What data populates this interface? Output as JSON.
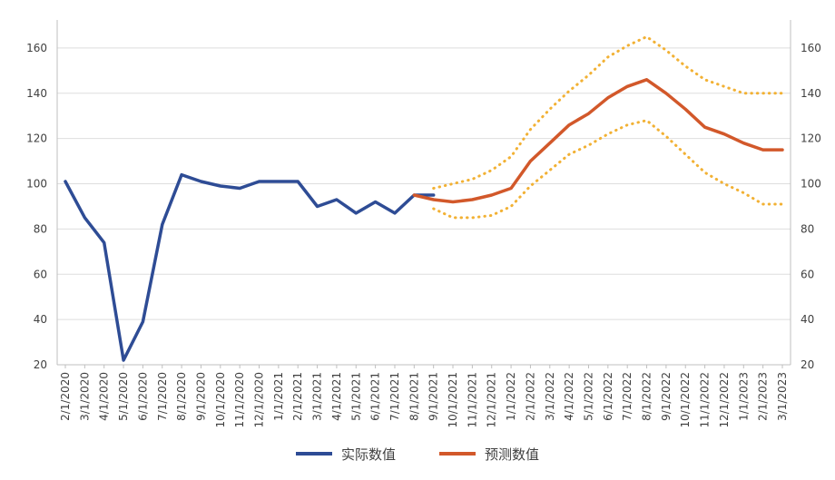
{
  "chart_data": {
    "type": "line",
    "categories": [
      "2/1/2020",
      "3/1/2020",
      "4/1/2020",
      "5/1/2020",
      "6/1/2020",
      "7/1/2020",
      "8/1/2020",
      "9/1/2020",
      "10/1/2020",
      "11/1/2020",
      "12/1/2020",
      "1/1/2021",
      "2/1/2021",
      "3/1/2021",
      "4/1/2021",
      "5/1/2021",
      "6/1/2021",
      "7/1/2021",
      "8/1/2021",
      "9/1/2021",
      "10/1/2021",
      "11/1/2021",
      "12/1/2021",
      "1/1/2022",
      "2/1/2022",
      "3/1/2022",
      "4/1/2022",
      "5/1/2022",
      "6/1/2022",
      "7/1/2022",
      "8/1/2022",
      "9/1/2022",
      "10/1/2022",
      "11/1/2022",
      "12/1/2022",
      "1/1/2023",
      "2/1/2023",
      "3/1/2023"
    ],
    "ylim": [
      20,
      170
    ],
    "yticks": [
      20,
      40,
      60,
      80,
      100,
      120,
      140,
      160
    ],
    "series": [
      {
        "name": "实际数值",
        "color": "#2e4c95",
        "style": "solid",
        "values": [
          101,
          85,
          74,
          22,
          39,
          82,
          104,
          101,
          99,
          98,
          101,
          101,
          101,
          90,
          93,
          87,
          92,
          87,
          95,
          95,
          null,
          null,
          null,
          null,
          null,
          null,
          null,
          null,
          null,
          null,
          null,
          null,
          null,
          null,
          null,
          null,
          null,
          null
        ]
      },
      {
        "name": "预测数值",
        "color": "#d2582a",
        "style": "solid",
        "values": [
          null,
          null,
          null,
          null,
          null,
          null,
          null,
          null,
          null,
          null,
          null,
          null,
          null,
          null,
          null,
          null,
          null,
          null,
          95,
          93,
          92,
          93,
          95,
          98,
          110,
          118,
          126,
          131,
          138,
          143,
          146,
          140,
          133,
          125,
          122,
          118,
          115,
          115
        ]
      },
      {
        "name": "",
        "color": "#f2b134",
        "style": "dotted",
        "values": [
          null,
          null,
          null,
          null,
          null,
          null,
          null,
          null,
          null,
          null,
          null,
          null,
          null,
          null,
          null,
          null,
          null,
          null,
          null,
          98,
          100,
          102,
          106,
          112,
          124,
          133,
          141,
          148,
          156,
          161,
          165,
          159,
          152,
          146,
          143,
          140,
          140,
          140
        ]
      },
      {
        "name": "",
        "color": "#f2b134",
        "style": "dotted",
        "values": [
          null,
          null,
          null,
          null,
          null,
          null,
          null,
          null,
          null,
          null,
          null,
          null,
          null,
          null,
          null,
          null,
          null,
          null,
          null,
          89,
          85,
          85,
          86,
          90,
          99,
          106,
          113,
          117,
          122,
          126,
          128,
          121,
          113,
          105,
          100,
          96,
          91,
          91
        ]
      }
    ],
    "legend": {
      "placement": "bottom",
      "entries": [
        {
          "label": "实际数值",
          "color": "#2e4c95"
        },
        {
          "label": "预测数值",
          "color": "#d2582a"
        }
      ]
    },
    "grid": true,
    "secondary_axis": true
  }
}
